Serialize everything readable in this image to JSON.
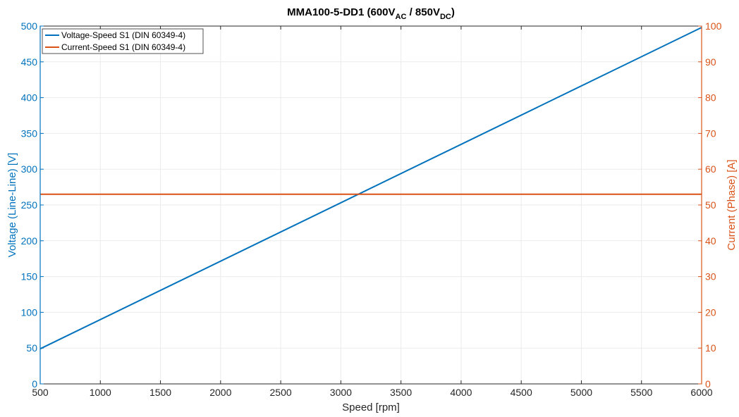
{
  "chart_data": {
    "type": "line",
    "title": {
      "main": "MMA100-5-DD1 (600V",
      "sub1": "AC",
      "mid": " / 850V",
      "sub2": "DC",
      "end": ")"
    },
    "xlabel": "Speed [rpm]",
    "ylabel_left": "Voltage (Line-Line) [V]",
    "ylabel_right": "Current (Phase) [A]",
    "xlim": [
      500,
      6000
    ],
    "ylim_left": [
      0,
      500
    ],
    "ylim_right": [
      0,
      100
    ],
    "x_ticks": [
      500,
      1000,
      1500,
      2000,
      2500,
      3000,
      3500,
      4000,
      4500,
      5000,
      5500,
      6000
    ],
    "y_left_ticks": [
      0,
      50,
      100,
      150,
      200,
      250,
      300,
      350,
      400,
      450,
      500
    ],
    "y_right_ticks": [
      0,
      10,
      20,
      30,
      40,
      50,
      60,
      70,
      80,
      90,
      100
    ],
    "grid": true,
    "legend_position": "top-left",
    "colors": {
      "left": "#0072BD",
      "right": "#D95319"
    },
    "series": [
      {
        "name": "Voltage-Speed S1 (DIN 60349-4)",
        "axis": "left",
        "x": [
          500,
          6000
        ],
        "y": [
          49,
          498
        ]
      },
      {
        "name": "Current-Speed S1 (DIN 60349-4)",
        "axis": "right",
        "x": [
          500,
          6000
        ],
        "y": [
          53,
          53
        ]
      }
    ]
  }
}
